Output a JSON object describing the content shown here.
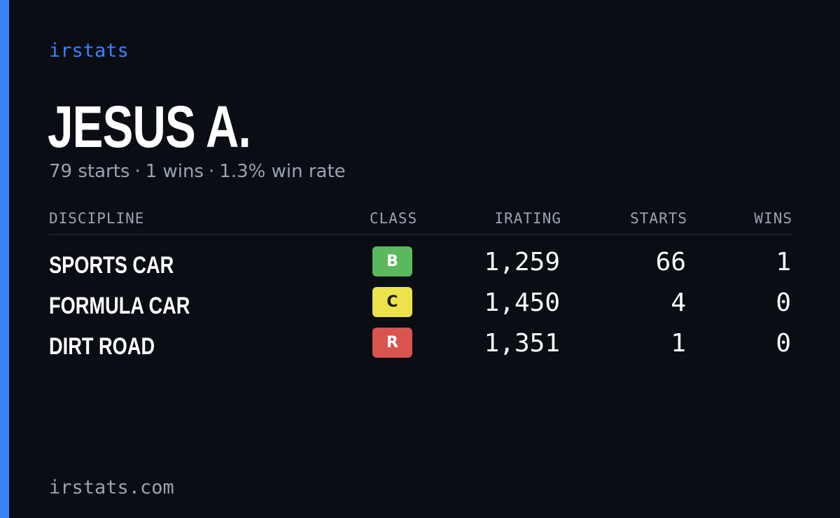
{
  "brand": "irstats",
  "driver": {
    "name": "JESUS A.",
    "starts_text": "79 starts",
    "wins_text": "1 wins",
    "win_rate_text": "1.3% win rate",
    "separator": "·"
  },
  "table": {
    "headers": {
      "discipline": "DISCIPLINE",
      "class": "CLASS",
      "irating": "IRATING",
      "starts": "STARTS",
      "wins": "WINS"
    },
    "rows": [
      {
        "discipline": "SPORTS CAR",
        "class": "B",
        "class_color": "#5cb85c",
        "class_text_color": "#ffffff",
        "irating": "1,259",
        "starts": "66",
        "wins": "1"
      },
      {
        "discipline": "FORMULA CAR",
        "class": "C",
        "class_color": "#ece24c",
        "class_text_color": "#1a1a1a",
        "irating": "1,450",
        "starts": "4",
        "wins": "0"
      },
      {
        "discipline": "DIRT ROAD",
        "class": "R",
        "class_color": "#d9534f",
        "class_text_color": "#ffffff",
        "irating": "1,351",
        "starts": "1",
        "wins": "0"
      }
    ]
  },
  "footer": "irstats.com",
  "colors": {
    "background": "#0a0d14",
    "accent": "#3b82f6",
    "muted": "#9aa3b2",
    "text": "#ffffff"
  }
}
